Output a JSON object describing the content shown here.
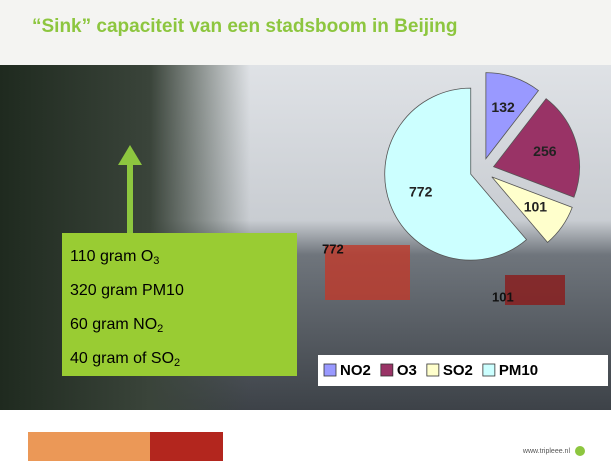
{
  "slide": {
    "title": "“Sink” capaciteit van een stadsboom in Beijing",
    "box_lines": [
      {
        "text": "110 gram O",
        "sub": "3"
      },
      {
        "text": "320 gram PM10"
      },
      {
        "text": "60 gram NO",
        "sub": "2"
      },
      {
        "text": "40 gram of SO",
        "sub": "2"
      }
    ],
    "footer": "www.tripleee.nl"
  },
  "chart_data": {
    "type": "pie",
    "categories": [
      "NO2",
      "O3",
      "SO2",
      "PM10"
    ],
    "values": [
      132,
      256,
      101,
      772
    ],
    "colors": [
      "#9999ff",
      "#993366",
      "#ffffcc",
      "#ccffff"
    ],
    "legend": "bottom-right"
  }
}
